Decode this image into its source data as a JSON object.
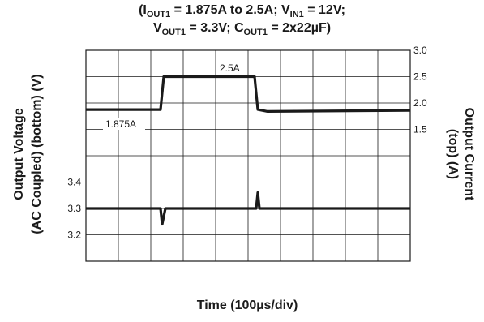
{
  "title": {
    "line1": "(IOUT1 = 1.875A to 2.5A; VIN1 = 12V;",
    "line2": "VOUT1 = 3.3V; COUT1 = 2x22µF)"
  },
  "chart_data": {
    "type": "line",
    "title": "(IOUT1 = 1.875A to 2.5A; VIN1 = 12V; VOUT1 = 3.3V; COUT1 = 2x22µF)",
    "xlabel": "Time (100µs/div)",
    "ylabel_left": [
      "Output Voltage",
      "(AC Coupled) (bottom) (V)"
    ],
    "ylabel_right": [
      "Output Current",
      "(top) (A)"
    ],
    "grid": true,
    "x_divisions": 10,
    "y_divisions": 8,
    "right_ticks": [
      "3.0",
      "2.5",
      "2.0",
      "1.5"
    ],
    "left_ticks": [
      "3.4",
      "3.3",
      "3.2"
    ],
    "annotations": [
      "1.875A",
      "2.5A"
    ],
    "series": [
      {
        "axis": "right",
        "x": [
          0,
          2.3,
          2.4,
          5.2,
          5.3,
          5.6,
          10
        ],
        "y": [
          1.875,
          1.875,
          2.5,
          2.5,
          1.875,
          1.84,
          1.86
        ]
      },
      {
        "axis": "left",
        "x": [
          0,
          2.3,
          2.35,
          2.45,
          5.25,
          5.3,
          5.35,
          10
        ],
        "y": [
          3.3,
          3.3,
          3.24,
          3.3,
          3.3,
          3.36,
          3.3,
          3.3
        ]
      }
    ],
    "colors": {
      "trace": "#1a1a1a",
      "grid": "#1a1a1a"
    }
  }
}
